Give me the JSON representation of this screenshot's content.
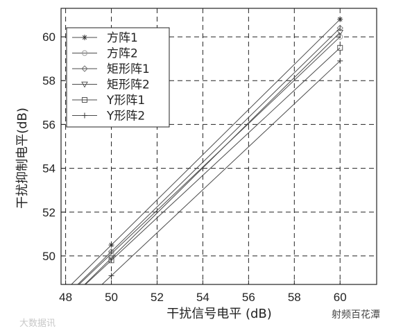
{
  "chart_data": {
    "type": "line",
    "xlabel": "干扰信号电平 (dB)",
    "ylabel": "干扰抑制电平(dB)",
    "xlim": [
      47.8,
      61.6
    ],
    "ylim": [
      48.7,
      61.3
    ],
    "xticks": [
      48,
      50,
      52,
      54,
      56,
      58,
      60
    ],
    "yticks": [
      50,
      52,
      54,
      56,
      58,
      60
    ],
    "grid": true,
    "legend_position": "top-left",
    "series": [
      {
        "name": "方阵1",
        "marker": "star",
        "x": [
          50,
          60
        ],
        "y": [
          50.5,
          60.8
        ]
      },
      {
        "name": "方阵2",
        "marker": "circle",
        "x": [
          50,
          60
        ],
        "y": [
          50.1,
          60.0
        ]
      },
      {
        "name": "矩形阵1",
        "marker": "diamond",
        "x": [
          50,
          60
        ],
        "y": [
          50.2,
          60.4
        ]
      },
      {
        "name": "矩形阵2",
        "marker": "triangle",
        "x": [
          50,
          60
        ],
        "y": [
          49.9,
          60.2
        ]
      },
      {
        "name": "Y形阵1",
        "marker": "square",
        "x": [
          50,
          60
        ],
        "y": [
          49.8,
          59.5
        ]
      },
      {
        "name": "Y形阵2",
        "marker": "plus",
        "x": [
          50,
          60
        ],
        "y": [
          49.1,
          58.9
        ]
      }
    ],
    "line_color": "#4a4a4a",
    "marker_colors": [
      "#333333",
      "#999999",
      "#777777",
      "#555555",
      "#555555",
      "#333333"
    ]
  },
  "watermark": {
    "left": "大数据讯",
    "right": "射频百花潭"
  }
}
